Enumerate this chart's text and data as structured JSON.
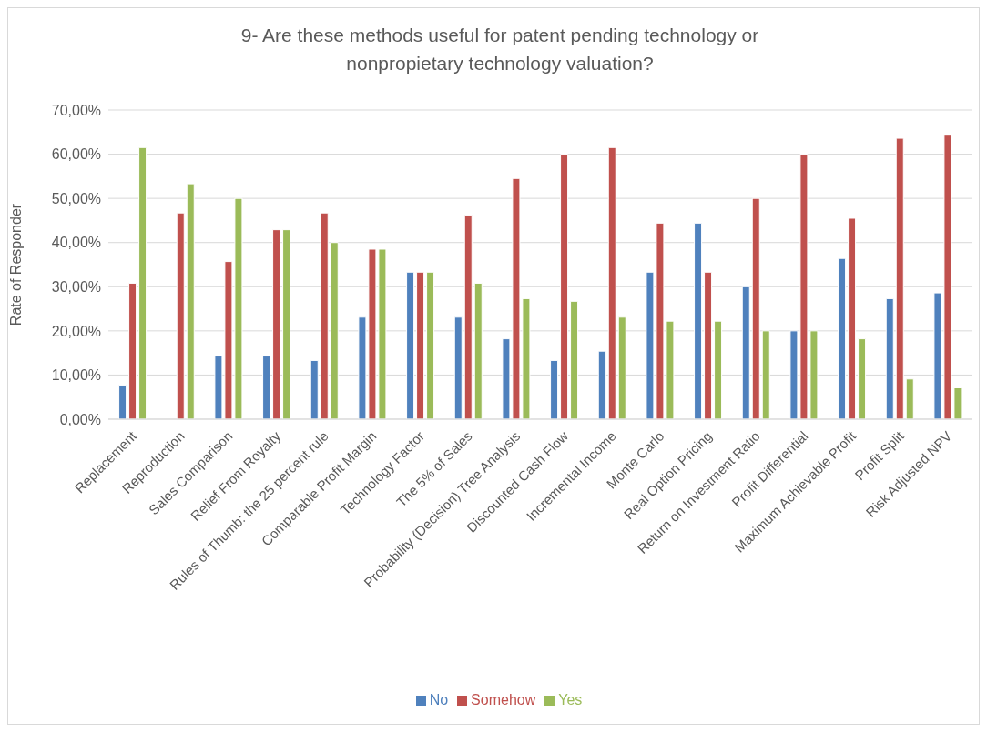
{
  "chart_data": {
    "type": "bar",
    "title": "9- Are these methods useful for patent pending technology or nonpropietary technology valuation?",
    "ylabel": "Rate of Responder",
    "categories": [
      "Replacement",
      "Reproduction",
      "Sales Comparison",
      "Relief From Royalty",
      "Rules of Thumb: the 25 percent rule",
      "Comparable Profit Margin",
      "Technology Factor",
      "The 5% of Sales",
      "Probability (Decision) Tree Analysis",
      "Discounted Cash Flow",
      "Incremental Income",
      "Monte Carlo",
      "Real Option Pricing",
      "Return on Investment Ratio",
      "Profit Differential",
      "Maximum Achievable Profit",
      "Profit Split",
      "Risk Adjusted NPV"
    ],
    "series": [
      {
        "name": "No",
        "color": "#4f81bd",
        "values": [
          7.7,
          0,
          14.3,
          14.3,
          13.3,
          23.1,
          33.3,
          23.1,
          18.2,
          13.3,
          15.4,
          33.3,
          44.4,
          30,
          20,
          36.4,
          27.3,
          28.6
        ]
      },
      {
        "name": "Somehow",
        "color": "#c0504d",
        "values": [
          30.8,
          46.7,
          35.7,
          42.9,
          46.7,
          38.5,
          33.3,
          46.2,
          54.5,
          60,
          61.5,
          44.4,
          33.3,
          50,
          60,
          45.5,
          63.6,
          64.3
        ]
      },
      {
        "name": "Yes",
        "color": "#9bbb59",
        "values": [
          61.5,
          53.3,
          50,
          42.9,
          40,
          38.5,
          33.3,
          30.8,
          27.3,
          26.7,
          23.1,
          22.2,
          22.2,
          20,
          20,
          18.2,
          9.1,
          7.1
        ]
      }
    ],
    "ylim": [
      0,
      70
    ],
    "yticks": [
      {
        "value": 0,
        "label": "0,00%"
      },
      {
        "value": 10,
        "label": "10,00%"
      },
      {
        "value": 20,
        "label": "20,00%"
      },
      {
        "value": 30,
        "label": "30,00%"
      },
      {
        "value": 40,
        "label": "40,00%"
      },
      {
        "value": 50,
        "label": "50,00%"
      },
      {
        "value": 60,
        "label": "60,00%"
      },
      {
        "value": 70,
        "label": "70,00%"
      }
    ],
    "grid": "y",
    "legend": "bottom"
  }
}
